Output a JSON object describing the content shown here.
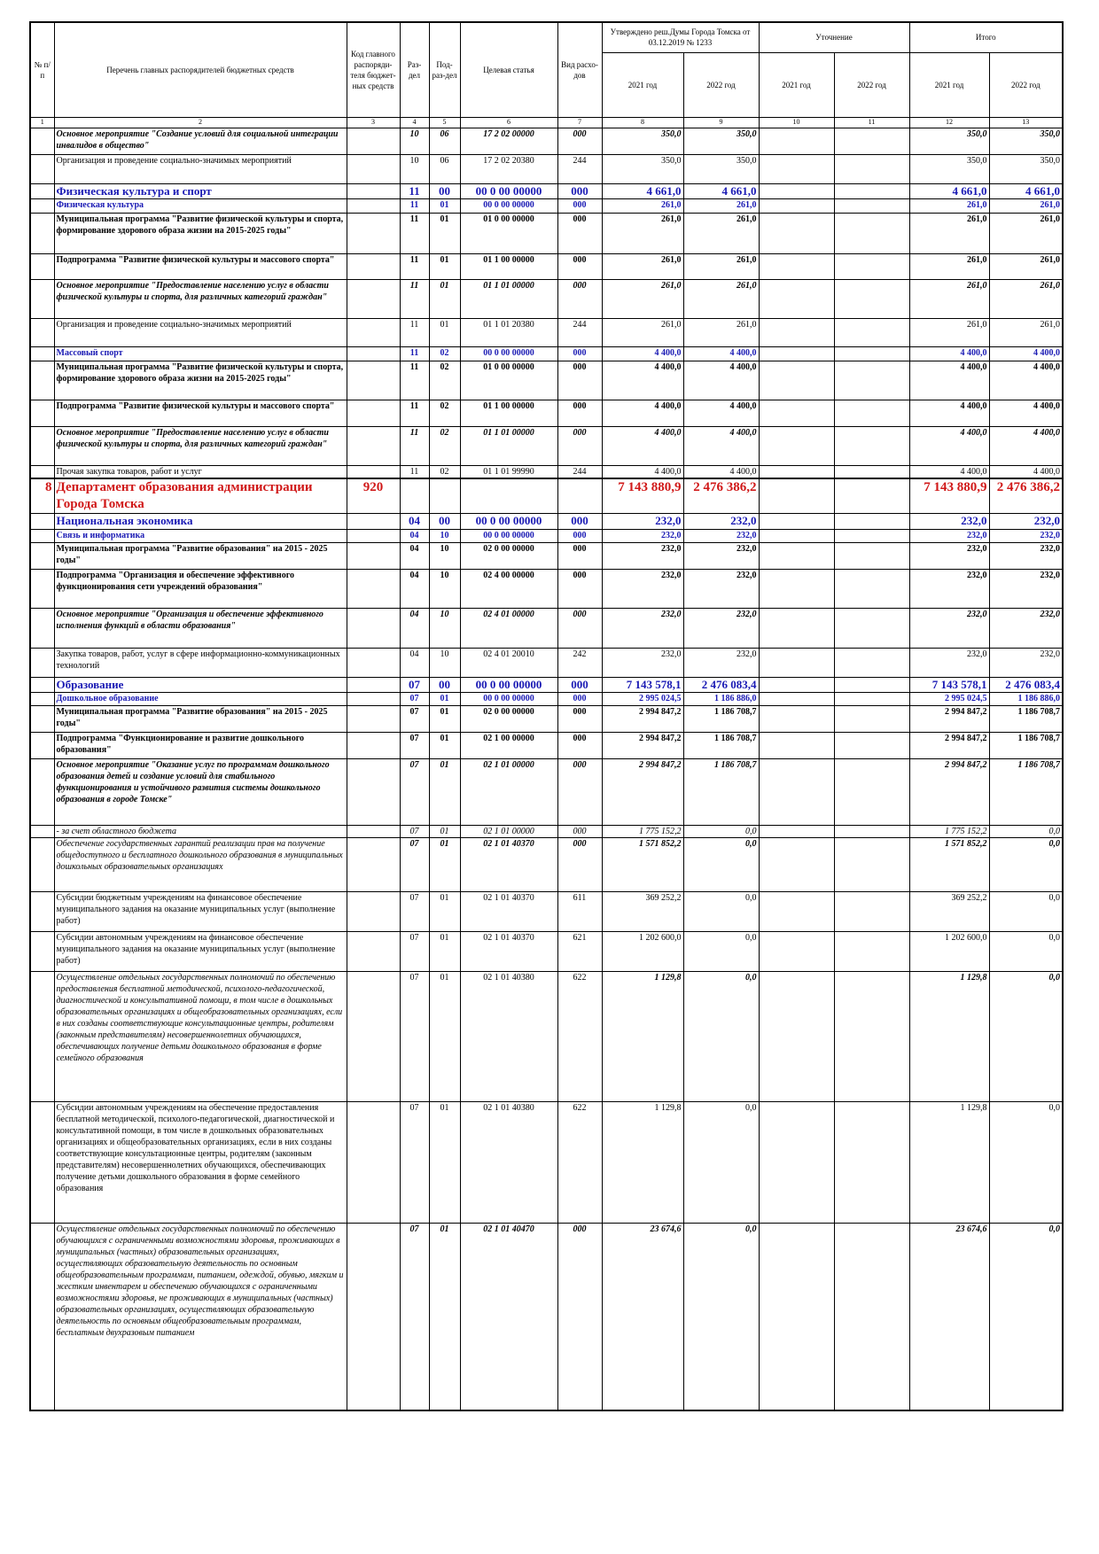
{
  "header": {
    "num": "№ п/п",
    "name": "Перечень главных распорядителей бюджетных средств",
    "code": "Код главного распоряди-теля бюджет-ных средств",
    "section": "Раз-дел",
    "subsection": "Под-раз-дел",
    "article": "Целевая статья",
    "type": "Вид расхо-дов",
    "approved": "Утверждено реш.Думы Города Томска от 03.12.2019 № 1233",
    "refinement": "Уточнение",
    "total": "Итого",
    "years": [
      "2021 год",
      "2022 год",
      "2021 год",
      "2022 год",
      "2021 год",
      "2022 год"
    ],
    "numbers": [
      "1",
      "2",
      "3",
      "4",
      "5",
      "6",
      "7",
      "8",
      "9",
      "10",
      "11",
      "12",
      "13"
    ]
  },
  "table": {
    "rows": [
      {
        "name": "Основное мероприятие \"Создание условий для социальной интеграции инвалидов в общество\"",
        "section": "10",
        "subsection": "06",
        "article": "17 2 02 00000",
        "type": "000",
        "values": [
          "350,0",
          "350,0",
          null,
          null,
          "350,0",
          "350,0"
        ]
      },
      {
        "name": "Организация и проведение социально-значимых мероприятий",
        "section": "10",
        "subsection": "06",
        "article": "17 2 02 20380",
        "type": "244",
        "values": [
          "350,0",
          "350,0",
          null,
          null,
          "350,0",
          "350,0"
        ]
      },
      {
        "name": "Физическая культура и спорт",
        "section": "11",
        "subsection": "00",
        "article": "00 0 00 00000",
        "type": "000",
        "values": [
          "4 661,0",
          "4 661,0",
          null,
          null,
          "4 661,0",
          "4 661,0"
        ]
      },
      {
        "name": "Физическая культура",
        "section": "11",
        "subsection": "01",
        "article": "00 0 00 00000",
        "type": "000",
        "values": [
          "261,0",
          "261,0",
          null,
          null,
          "261,0",
          "261,0"
        ]
      },
      {
        "name": "Муниципальная программа \"Развитие физической культуры и спорта, формирование здорового образа жизни на 2015-2025 годы\"",
        "section": "11",
        "subsection": "01",
        "article": "01 0 00 00000",
        "type": "000",
        "values": [
          "261,0",
          "261,0",
          null,
          null,
          "261,0",
          "261,0"
        ]
      },
      {
        "name": "Подпрограмма \"Развитие физической культуры и массового спорта\"",
        "section": "11",
        "subsection": "01",
        "article": "01 1 00 00000",
        "type": "000",
        "values": [
          "261,0",
          "261,0",
          null,
          null,
          "261,0",
          "261,0"
        ]
      },
      {
        "name": "Основное мероприятие \"Предоставление населению услуг в области физической культуры и спорта, для различных категорий граждан\"",
        "section": "11",
        "subsection": "01",
        "article": "01 1 01 00000",
        "type": "000",
        "values": [
          "261,0",
          "261,0",
          null,
          null,
          "261,0",
          "261,0"
        ]
      },
      {
        "name": "Организация и проведение социально-значимых мероприятий",
        "section": "11",
        "subsection": "01",
        "article": "01 1 01 20380",
        "type": "244",
        "values": [
          "261,0",
          "261,0",
          null,
          null,
          "261,0",
          "261,0"
        ]
      },
      {
        "name": "Массовый спорт",
        "section": "11",
        "subsection": "02",
        "article": "00 0 00 00000",
        "type": "000",
        "values": [
          "4 400,0",
          "4 400,0",
          null,
          null,
          "4 400,0",
          "4 400,0"
        ]
      },
      {
        "name": "Муниципальная программа \"Развитие физической культуры и спорта, формирование здорового образа жизни на 2015-2025 годы\"",
        "section": "11",
        "subsection": "02",
        "article": "01 0 00 00000",
        "type": "000",
        "values": [
          "4 400,0",
          "4 400,0",
          null,
          null,
          "4 400,0",
          "4 400,0"
        ]
      },
      {
        "name": "Подпрограмма \"Развитие физической культуры и массового спорта\"",
        "section": "11",
        "subsection": "02",
        "article": "01 1 00 00000",
        "type": "000",
        "values": [
          "4 400,0",
          "4 400,0",
          null,
          null,
          "4 400,0",
          "4 400,0"
        ]
      },
      {
        "name": "Основное мероприятие \"Предоставление населению услуг в области физической культуры и спорта, для различных категорий граждан\"",
        "section": "11",
        "subsection": "02",
        "article": "01 1 01 00000",
        "type": "000",
        "values": [
          "4 400,0",
          "4 400,0",
          null,
          null,
          "4 400,0",
          "4 400,0"
        ]
      },
      {
        "name": "Прочая закупка товаров, работ и услуг",
        "section": "11",
        "subsection": "02",
        "article": "01 1 01 99990",
        "type": "244",
        "values": [
          "4 400,0",
          "4 400,0",
          null,
          null,
          "4 400,0",
          "4 400,0"
        ]
      },
      {
        "num": "8",
        "name": "Департамент образования администрации Города Томска",
        "code": "920",
        "values": [
          "7 143 880,9",
          "2 476 386,2",
          null,
          null,
          "7 143 880,9",
          "2 476 386,2"
        ]
      },
      {
        "name": "Национальная экономика",
        "section": "04",
        "subsection": "00",
        "article": "00 0 00 00000",
        "type": "000",
        "values": [
          "232,0",
          "232,0",
          null,
          null,
          "232,0",
          "232,0"
        ]
      },
      {
        "name": "Связь и информатика",
        "section": "04",
        "subsection": "10",
        "article": "00 0 00 00000",
        "type": "000",
        "values": [
          "232,0",
          "232,0",
          null,
          null,
          "232,0",
          "232,0"
        ]
      },
      {
        "name": "Муниципальная программа \"Развитие образования\" на 2015 - 2025 годы\"",
        "section": "04",
        "subsection": "10",
        "article": "02 0 00 00000",
        "type": "000",
        "values": [
          "232,0",
          "232,0",
          null,
          null,
          "232,0",
          "232,0"
        ]
      },
      {
        "name": "Подпрограмма \"Организация и обеспечение эффективного функционирования сети учреждений образования\"",
        "section": "04",
        "subsection": "10",
        "article": "02 4 00 00000",
        "type": "000",
        "values": [
          "232,0",
          "232,0",
          null,
          null,
          "232,0",
          "232,0"
        ]
      },
      {
        "name": "Основное мероприятие \"Организация и обеспечение эффективного исполнения функций в области образования\"",
        "section": "04",
        "subsection": "10",
        "article": "02 4 01 00000",
        "type": "000",
        "values": [
          "232,0",
          "232,0",
          null,
          null,
          "232,0",
          "232,0"
        ]
      },
      {
        "name": "Закупка товаров, работ, услуг в сфере информационно-коммуникационных технологий",
        "section": "04",
        "subsection": "10",
        "article": "02 4 01 20010",
        "type": "242",
        "values": [
          "232,0",
          "232,0",
          null,
          null,
          "232,0",
          "232,0"
        ]
      },
      {
        "name": "Образование",
        "section": "07",
        "subsection": "00",
        "article": "00 0 00 00000",
        "type": "000",
        "values": [
          "7 143 578,1",
          "2 476 083,4",
          null,
          null,
          "7 143 578,1",
          "2 476 083,4"
        ]
      },
      {
        "name": "Дошкольное образование",
        "section": "07",
        "subsection": "01",
        "article": "00 0 00 00000",
        "type": "000",
        "values": [
          "2 995 024,5",
          "1 186 886,0",
          null,
          null,
          "2 995 024,5",
          "1 186 886,0"
        ]
      },
      {
        "name": "Муниципальная программа \"Развитие образования\" на 2015 - 2025 годы\"",
        "section": "07",
        "subsection": "01",
        "article": "02 0 00 00000",
        "type": "000",
        "values": [
          "2 994 847,2",
          "1 186 708,7",
          null,
          null,
          "2 994 847,2",
          "1 186 708,7"
        ]
      },
      {
        "name": "Подпрограмма \"Функционирование и развитие дошкольного образования\"",
        "section": "07",
        "subsection": "01",
        "article": "02 1 00 00000",
        "type": "000",
        "values": [
          "2 994 847,2",
          "1 186 708,7",
          null,
          null,
          "2 994 847,2",
          "1 186 708,7"
        ]
      },
      {
        "name": "Основное мероприятие \"Оказание услуг по программам дошкольного образования детей и создание условий для стабильного функционирования и устойчивого развития системы дошкольного образования в городе Томске\"",
        "section": "07",
        "subsection": "01",
        "article": "02 1 01 00000",
        "type": "000",
        "values": [
          "2 994 847,2",
          "1 186 708,7",
          null,
          null,
          "2 994 847,2",
          "1 186 708,7"
        ]
      },
      {
        "name": "- за счет областного бюджета",
        "section": "07",
        "subsection": "01",
        "article": "02 1 01 00000",
        "type": "000",
        "values": [
          "1 775 152,2",
          "0,0",
          null,
          null,
          "1 775 152,2",
          "0,0"
        ]
      },
      {
        "name": "Обеспечение государственных гарантий реализации прав на получение общедоступного и бесплатного дошкольного образования в муниципальных дошкольных образовательных организациях",
        "section": "07",
        "subsection": "01",
        "article": "02 1 01 40370",
        "type": "000",
        "values": [
          "1 571 852,2",
          "0,0",
          null,
          null,
          "1 571 852,2",
          "0,0"
        ]
      },
      {
        "name": "Субсидии бюджетным учреждениям на финансовое обеспечение муниципального задания на оказание муниципальных услуг (выполнение работ)",
        "section": "07",
        "subsection": "01",
        "article": "02 1 01 40370",
        "type": "611",
        "values": [
          "369 252,2",
          "0,0",
          null,
          null,
          "369 252,2",
          "0,0"
        ]
      },
      {
        "name": "Субсидии автономным учреждениям на финансовое обеспечение муниципального задания на оказание муниципальных услуг (выполнение работ)",
        "section": "07",
        "subsection": "01",
        "article": "02 1 01 40370",
        "type": "621",
        "values": [
          "1 202 600,0",
          "0,0",
          null,
          null,
          "1 202 600,0",
          "0,0"
        ]
      },
      {
        "name": "Осуществление отдельных государственных полномочий по обеспечению предоставления бесплатной методической, психолого-педагогической, диагностической и консультативной помощи, в том числе в дошкольных образовательных организациях и общеобразовательных организациях, если в них созданы соответствующие консультационные центры, родителям (законным представителям) несовершеннолетних обучающихся, обеспечивающих получение детьми дошкольного образования в форме семейного образования",
        "section": "07",
        "subsection": "01",
        "article": "02 1 01 40380",
        "type": "622",
        "values": [
          "1 129,8",
          "0,0",
          null,
          null,
          "1 129,8",
          "0,0"
        ]
      },
      {
        "name": "Субсидии автономным учреждениям на обеспечение предоставления бесплатной методической, психолого-педагогической, диагностической и консультативной помощи, в том числе в дошкольных образовательных организациях и общеобразовательных организациях, если в них созданы соответствующие консультационные центры, родителям (законным представителям) несовершеннолетних обучающихся, обеспечивающих получение детьми дошкольного образования в форме семейного образования",
        "section": "07",
        "subsection": "01",
        "article": "02 1 01 40380",
        "type": "622",
        "values": [
          "1 129,8",
          "0,0",
          null,
          null,
          "1 129,8",
          "0,0"
        ]
      },
      {
        "name": "Осуществление отдельных государственных полномочий по обеспечению обучающихся с ограниченными возможностями здоровья, проживающих в муниципальных (частных) образовательных организациях, осуществляющих образовательную деятельность по основным общеобразовательным программам, питанием, одеждой, обувью, мягким и жестким инвентарем и обеспечению обучающихся с ограниченными возможностями здоровья, не проживающих в муниципальных (частных) образовательных организациях, осуществляющих образовательную деятельность по основным общеобразовательным программам, бесплатным двухразовым питанием",
        "section": "07",
        "subsection": "01",
        "article": "02 1 01 40470",
        "type": "000",
        "values": [
          "23 674,6",
          "0,0",
          null,
          null,
          "23 674,6",
          "0,0"
        ]
      }
    ]
  }
}
